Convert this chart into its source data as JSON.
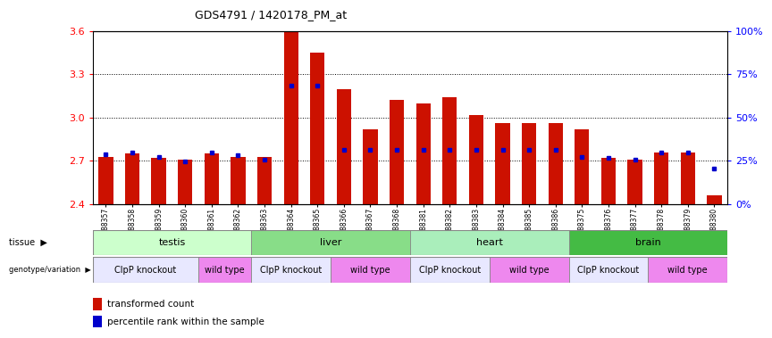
{
  "title": "GDS4791 / 1420178_PM_at",
  "samples": [
    "GSM988357",
    "GSM988358",
    "GSM988359",
    "GSM988360",
    "GSM988361",
    "GSM988362",
    "GSM988363",
    "GSM988364",
    "GSM988365",
    "GSM988366",
    "GSM988367",
    "GSM988368",
    "GSM988381",
    "GSM988382",
    "GSM988383",
    "GSM988384",
    "GSM988385",
    "GSM988386",
    "GSM988375",
    "GSM988376",
    "GSM988377",
    "GSM988378",
    "GSM988379",
    "GSM988380"
  ],
  "red_values": [
    2.73,
    2.75,
    2.72,
    2.71,
    2.75,
    2.73,
    2.73,
    3.6,
    3.45,
    3.2,
    2.92,
    3.12,
    3.1,
    3.14,
    3.02,
    2.96,
    2.96,
    2.96,
    2.92,
    2.72,
    2.71,
    2.76,
    2.76,
    2.46
  ],
  "blue_values": [
    2.745,
    2.76,
    2.725,
    2.695,
    2.758,
    2.74,
    2.71,
    3.22,
    3.22,
    2.775,
    2.775,
    2.775,
    2.775,
    2.775,
    2.775,
    2.775,
    2.775,
    2.775,
    2.73,
    2.72,
    2.71,
    2.755,
    2.76,
    2.645
  ],
  "tissues": [
    {
      "label": "testis",
      "start": 0,
      "end": 6,
      "color": "#ccffcc"
    },
    {
      "label": "liver",
      "start": 6,
      "end": 12,
      "color": "#88dd88"
    },
    {
      "label": "heart",
      "start": 12,
      "end": 18,
      "color": "#aaeebb"
    },
    {
      "label": "brain",
      "start": 18,
      "end": 24,
      "color": "#44bb44"
    }
  ],
  "genotypes": [
    {
      "label": "ClpP knockout",
      "start": 0,
      "end": 4,
      "color": "#e8e8ff"
    },
    {
      "label": "wild type",
      "start": 4,
      "end": 6,
      "color": "#ee88ee"
    },
    {
      "label": "ClpP knockout",
      "start": 6,
      "end": 9,
      "color": "#e8e8ff"
    },
    {
      "label": "wild type",
      "start": 9,
      "end": 12,
      "color": "#ee88ee"
    },
    {
      "label": "ClpP knockout",
      "start": 12,
      "end": 15,
      "color": "#e8e8ff"
    },
    {
      "label": "wild type",
      "start": 15,
      "end": 18,
      "color": "#ee88ee"
    },
    {
      "label": "ClpP knockout",
      "start": 18,
      "end": 21,
      "color": "#e8e8ff"
    },
    {
      "label": "wild type",
      "start": 21,
      "end": 24,
      "color": "#ee88ee"
    }
  ],
  "ylim": [
    2.4,
    3.6
  ],
  "yticks_left": [
    2.4,
    2.7,
    3.0,
    3.3,
    3.6
  ],
  "yticks_right_vals": [
    0,
    25,
    50,
    75,
    100
  ],
  "yticks_right_pos": [
    2.4,
    2.7,
    3.0,
    3.3,
    3.6
  ],
  "bar_color": "#cc1100",
  "dot_color": "#0000cc",
  "plot_bg": "#ffffff",
  "bar_width": 0.55,
  "fig_width": 8.51,
  "fig_height": 3.84,
  "dpi": 100
}
